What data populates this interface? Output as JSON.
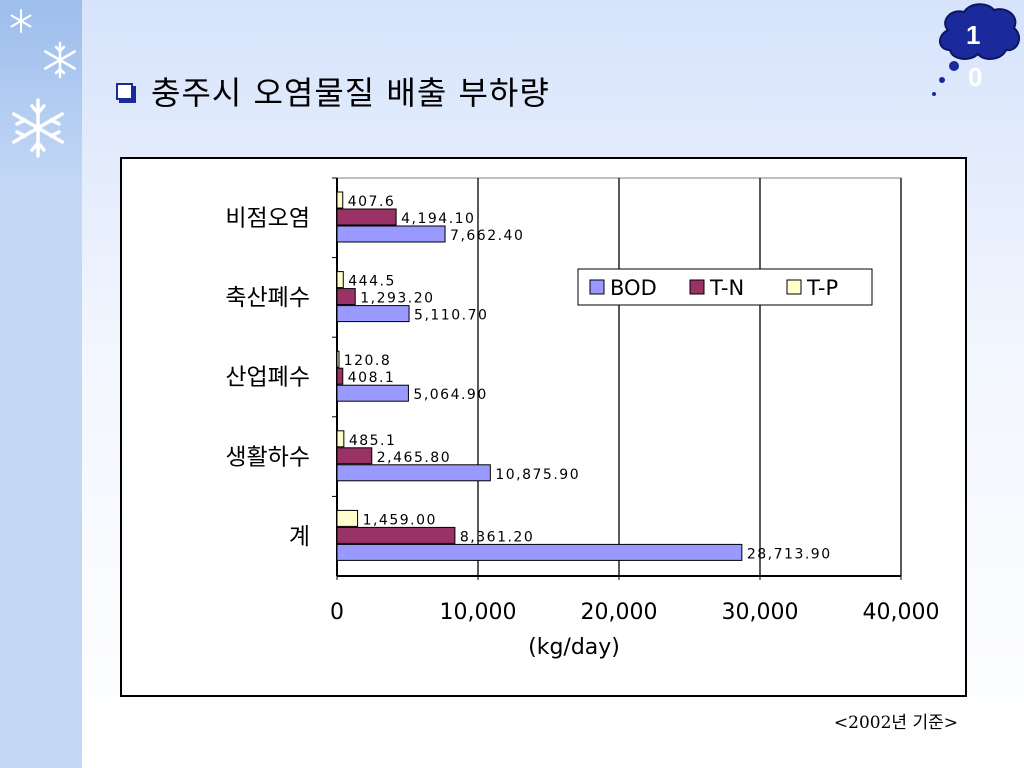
{
  "slide": {
    "title": "충주시 오염물질 배출 부하량",
    "page_number_line1": "1",
    "page_number_line2": "0",
    "footnote": "<2002년 기준>"
  },
  "colors": {
    "BOD": "#9999ff",
    "T-N": "#993366",
    "T-P": "#ffffcc",
    "bullet": "#1a2a9a",
    "cloud": "#1a2a9a"
  },
  "icons": {
    "bullet": "square-bullet-icon",
    "snowflakes": [
      "snowflake-icon",
      "snowflake-icon",
      "snowflake-icon"
    ],
    "page_badge": "cloud-icon"
  },
  "chart_data": {
    "type": "bar",
    "orientation": "horizontal",
    "categories": [
      "비점오염",
      "축산폐수",
      "산업폐수",
      "생활하수",
      "계"
    ],
    "series": [
      {
        "name": "T-P",
        "values": [
          407.6,
          444.5,
          120.8,
          485.1,
          1459.0
        ],
        "labels": [
          "407.6",
          "444.5",
          "120.8",
          "485.1",
          "1,459.00"
        ]
      },
      {
        "name": "T-N",
        "values": [
          4194.1,
          1293.2,
          408.1,
          2465.8,
          8361.2
        ],
        "labels": [
          "4,194.10",
          "1,293.20",
          "408.1",
          "2,465.80",
          "8,361.20"
        ]
      },
      {
        "name": "BOD",
        "values": [
          7662.4,
          5110.7,
          5064.9,
          10875.9,
          28713.9
        ],
        "labels": [
          "7,662.40",
          "5,110.70",
          "5,064.90",
          "10,875.90",
          "28,713.90"
        ]
      }
    ],
    "legend": [
      "BOD",
      "T-N",
      "T-P"
    ],
    "legend_position": "top-right",
    "xlabel": "(kg/day)",
    "xlim": [
      0,
      40000
    ],
    "xticks": [
      "0",
      "10,000",
      "20,000",
      "30,000",
      "40,000"
    ],
    "xtick_values": [
      0,
      10000,
      20000,
      30000,
      40000
    ],
    "grid": "vertical"
  }
}
